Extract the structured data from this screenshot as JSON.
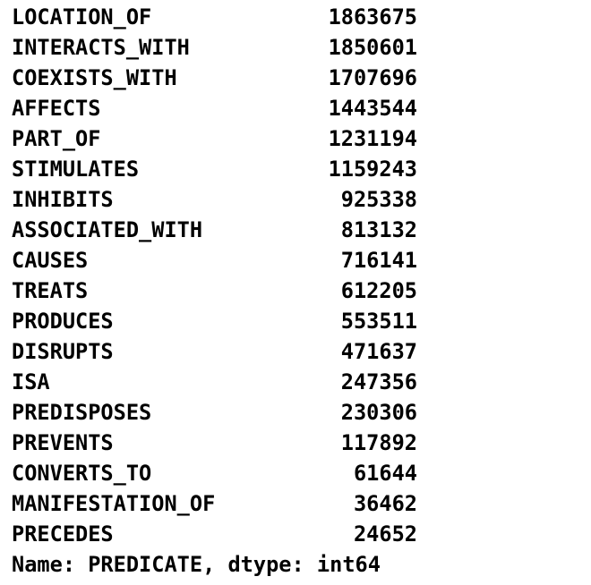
{
  "series_output": {
    "rows": [
      {
        "label": "LOCATION_OF",
        "value": "1863675"
      },
      {
        "label": "INTERACTS_WITH",
        "value": "1850601"
      },
      {
        "label": "COEXISTS_WITH",
        "value": "1707696"
      },
      {
        "label": "AFFECTS",
        "value": "1443544"
      },
      {
        "label": "PART_OF",
        "value": "1231194"
      },
      {
        "label": "STIMULATES",
        "value": "1159243"
      },
      {
        "label": "INHIBITS",
        "value": "925338"
      },
      {
        "label": "ASSOCIATED_WITH",
        "value": "813132"
      },
      {
        "label": "CAUSES",
        "value": "716141"
      },
      {
        "label": "TREATS",
        "value": "612205"
      },
      {
        "label": "PRODUCES",
        "value": "553511"
      },
      {
        "label": "DISRUPTS",
        "value": "471637"
      },
      {
        "label": "ISA",
        "value": "247356"
      },
      {
        "label": "PREDISPOSES",
        "value": "230306"
      },
      {
        "label": "PREVENTS",
        "value": "117892"
      },
      {
        "label": "CONVERTS_TO",
        "value": "61644"
      },
      {
        "label": "MANIFESTATION_OF",
        "value": "36462"
      },
      {
        "label": "PRECEDES",
        "value": "24652"
      }
    ],
    "footer": "Name: PREDICATE, dtype: int64"
  }
}
